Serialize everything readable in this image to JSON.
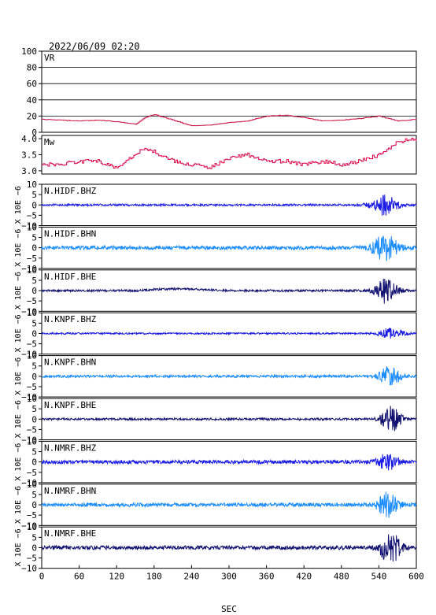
{
  "header": {
    "datetime": "2022/06/09 02:20"
  },
  "colors": {
    "vr": "#cc1144",
    "mw": "#dd0044",
    "bhz": "#1a1ae6",
    "bhn": "#1a8cff",
    "bhe": "#101070",
    "axis": "#000000"
  },
  "chart_data": [
    {
      "type": "line",
      "label": "VR",
      "ylim": [
        0,
        100
      ],
      "yticks": [
        "100",
        "80",
        "60",
        "40",
        "20",
        "0"
      ],
      "grid": true,
      "series": [
        {
          "x": [
            0,
            30,
            60,
            90,
            120,
            150,
            165,
            180,
            210,
            240,
            270,
            300,
            330,
            360,
            390,
            420,
            450,
            480,
            510,
            540,
            570,
            600
          ],
          "values": [
            16,
            15,
            14,
            15,
            13,
            10,
            18,
            22,
            15,
            8,
            9,
            12,
            14,
            20,
            21,
            18,
            14,
            15,
            17,
            20,
            14,
            16
          ]
        }
      ]
    },
    {
      "type": "line",
      "label": "Mw",
      "ylim": [
        2.9,
        4.1
      ],
      "yticks": [
        "4.0",
        "3.5",
        "3.0"
      ],
      "grid": false,
      "series": [
        {
          "x": [
            0,
            30,
            60,
            90,
            120,
            150,
            165,
            180,
            210,
            240,
            270,
            300,
            330,
            360,
            390,
            420,
            450,
            480,
            510,
            540,
            570,
            600
          ],
          "values": [
            3.2,
            3.2,
            3.3,
            3.3,
            3.1,
            3.5,
            3.7,
            3.6,
            3.3,
            3.2,
            3.1,
            3.4,
            3.5,
            3.3,
            3.3,
            3.2,
            3.3,
            3.2,
            3.3,
            3.5,
            3.9,
            4.0
          ]
        }
      ]
    },
    {
      "type": "line",
      "label": "N.HIDF.BHZ",
      "component": "bhz",
      "ylim": [
        -10,
        10
      ],
      "yticks": [
        "10",
        "5",
        "0",
        "−5",
        "−10"
      ],
      "noise": 0.5,
      "burst": {
        "center": 548,
        "width": 20,
        "amp": 5
      }
    },
    {
      "type": "line",
      "label": "N.HIDF.BHN",
      "component": "bhn",
      "ylim": [
        -10,
        10
      ],
      "yticks": [
        "10",
        "5",
        "0",
        "−5",
        "−10"
      ],
      "noise": 0.9,
      "burst": {
        "center": 550,
        "width": 20,
        "amp": 6
      }
    },
    {
      "type": "line",
      "label": "N.HIDF.BHE",
      "component": "bhe",
      "ylim": [
        -10,
        10
      ],
      "yticks": [
        "10",
        "5",
        "0",
        "−5",
        "−10"
      ],
      "noise": 0.5,
      "burst": {
        "center": 552,
        "width": 18,
        "amp": 6
      }
    },
    {
      "type": "line",
      "label": "N.KNPF.BHZ",
      "component": "bhz",
      "ylim": [
        -10,
        10
      ],
      "yticks": [
        "10",
        "5",
        "0",
        "−5",
        "−10"
      ],
      "noise": 0.4,
      "burst": {
        "center": 560,
        "width": 20,
        "amp": 2.5
      }
    },
    {
      "type": "line",
      "label": "N.KNPF.BHN",
      "component": "bhn",
      "ylim": [
        -10,
        10
      ],
      "yticks": [
        "10",
        "5",
        "0",
        "−5",
        "−10"
      ],
      "noise": 0.6,
      "burst": {
        "center": 558,
        "width": 16,
        "amp": 5
      }
    },
    {
      "type": "line",
      "label": "N.KNPF.BHE",
      "component": "bhe",
      "ylim": [
        -10,
        10
      ],
      "yticks": [
        "10",
        "5",
        "0",
        "−5",
        "−10"
      ],
      "noise": 0.5,
      "burst": {
        "center": 560,
        "width": 16,
        "amp": 6
      }
    },
    {
      "type": "line",
      "label": "N.NMRF.BHZ",
      "component": "bhz",
      "ylim": [
        -10,
        10
      ],
      "yticks": [
        "10",
        "5",
        "0",
        "−5",
        "−10"
      ],
      "noise": 0.9,
      "burst": {
        "center": 555,
        "width": 16,
        "amp": 4
      }
    },
    {
      "type": "line",
      "label": "N.NMRF.BHN",
      "component": "bhn",
      "ylim": [
        -10,
        10
      ],
      "yticks": [
        "10",
        "5",
        "0",
        "−5",
        "−10"
      ],
      "noise": 0.9,
      "burst": {
        "center": 555,
        "width": 16,
        "amp": 6
      }
    },
    {
      "type": "line",
      "label": "N.NMRF.BHE",
      "component": "bhe",
      "ylim": [
        -10,
        10
      ],
      "yticks": [
        "10",
        "5",
        "0",
        "−5",
        "−10"
      ],
      "noise": 0.9,
      "burst": {
        "center": 558,
        "width": 16,
        "amp": 8
      }
    }
  ],
  "axes": {
    "waveform_ylabel": "X 10E −6",
    "xlabel": "SEC",
    "xlim": [
      0,
      600
    ],
    "xticks": [
      0,
      60,
      120,
      180,
      240,
      300,
      360,
      420,
      480,
      540,
      600
    ],
    "xtick_labels": [
      "0",
      "60",
      "120",
      "180",
      "240",
      "300",
      "360",
      "420",
      "480",
      "540",
      "600"
    ]
  }
}
